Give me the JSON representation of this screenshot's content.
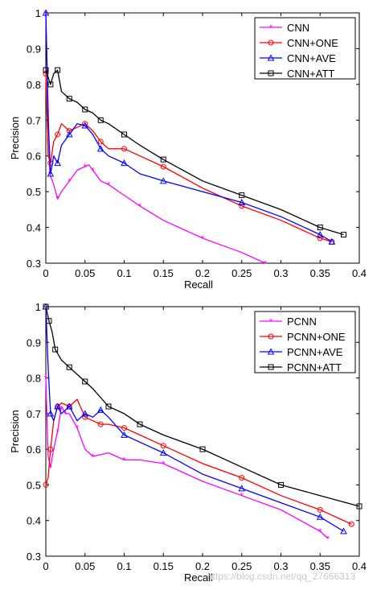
{
  "chart_data": [
    {
      "type": "line",
      "xlabel": "Recall",
      "ylabel": "Precision",
      "xlim": [
        0,
        0.4
      ],
      "ylim": [
        0.3,
        1
      ],
      "xticks": [
        0,
        0.05,
        0.1,
        0.15,
        0.2,
        0.25,
        0.3,
        0.35,
        0.4
      ],
      "xtick_labels": [
        "0",
        "0.05",
        "0.1",
        "0.15",
        "0.2",
        "0.25",
        "0.3",
        "0.35",
        "0.4"
      ],
      "yticks": [
        0.3,
        0.4,
        0.5,
        0.6,
        0.7,
        0.8,
        0.9,
        1
      ],
      "ytick_labels": [
        "0.3",
        "0.4",
        "0.5",
        "0.6",
        "0.7",
        "0.8",
        "0.9",
        "1"
      ],
      "legend_position": "top-right",
      "series": [
        {
          "name": "CNN",
          "color": "#ff00ff",
          "marker": "star",
          "x": [
            0.0,
            0.002,
            0.005,
            0.01,
            0.015,
            0.02,
            0.03,
            0.04,
            0.05,
            0.055,
            0.06,
            0.07,
            0.08,
            0.1,
            0.12,
            0.15,
            0.2,
            0.25,
            0.28
          ],
          "y": [
            1.0,
            0.82,
            0.55,
            0.52,
            0.48,
            0.5,
            0.53,
            0.56,
            0.57,
            0.575,
            0.56,
            0.53,
            0.52,
            0.49,
            0.46,
            0.42,
            0.37,
            0.33,
            0.3
          ]
        },
        {
          "name": "CNN+ONE",
          "color": "#ff0000",
          "marker": "circle",
          "x": [
            0.0,
            0.003,
            0.006,
            0.01,
            0.015,
            0.02,
            0.03,
            0.04,
            0.05,
            0.06,
            0.07,
            0.08,
            0.1,
            0.12,
            0.15,
            0.2,
            0.25,
            0.3,
            0.35,
            0.365
          ],
          "y": [
            0.83,
            0.6,
            0.58,
            0.64,
            0.66,
            0.69,
            0.67,
            0.68,
            0.69,
            0.67,
            0.64,
            0.62,
            0.62,
            0.6,
            0.57,
            0.51,
            0.46,
            0.42,
            0.37,
            0.36
          ]
        },
        {
          "name": "CNN+AVE",
          "color": "#0000ff",
          "marker": "triangle",
          "x": [
            0.0,
            0.003,
            0.006,
            0.01,
            0.015,
            0.02,
            0.03,
            0.04,
            0.05,
            0.06,
            0.07,
            0.08,
            0.1,
            0.12,
            0.15,
            0.2,
            0.25,
            0.3,
            0.35,
            0.365
          ],
          "y": [
            1.0,
            0.7,
            0.55,
            0.6,
            0.58,
            0.63,
            0.66,
            0.69,
            0.685,
            0.66,
            0.62,
            0.6,
            0.58,
            0.55,
            0.53,
            0.5,
            0.47,
            0.43,
            0.38,
            0.36
          ]
        },
        {
          "name": "CNN+ATT",
          "color": "#000000",
          "marker": "square",
          "x": [
            0.0,
            0.003,
            0.006,
            0.01,
            0.015,
            0.02,
            0.03,
            0.04,
            0.05,
            0.06,
            0.07,
            0.08,
            0.1,
            0.12,
            0.15,
            0.2,
            0.25,
            0.3,
            0.35,
            0.38
          ],
          "y": [
            0.84,
            0.82,
            0.8,
            0.83,
            0.84,
            0.78,
            0.76,
            0.75,
            0.73,
            0.72,
            0.7,
            0.69,
            0.66,
            0.63,
            0.59,
            0.53,
            0.49,
            0.45,
            0.4,
            0.38
          ]
        }
      ]
    },
    {
      "type": "line",
      "xlabel": "Recall",
      "ylabel": "Precision",
      "xlim": [
        0,
        0.4
      ],
      "ylim": [
        0.3,
        1
      ],
      "xticks": [
        0,
        0.05,
        0.1,
        0.15,
        0.2,
        0.25,
        0.3,
        0.35,
        0.4
      ],
      "xtick_labels": [
        "0",
        "0.05",
        "0.1",
        "0.15",
        "0.2",
        "0.25",
        "0.3",
        "0.35",
        "0.4"
      ],
      "yticks": [
        0.3,
        0.4,
        0.5,
        0.6,
        0.7,
        0.8,
        0.9,
        1
      ],
      "ytick_labels": [
        "0.3",
        "0.4",
        "0.5",
        "0.6",
        "0.7",
        "0.8",
        "0.9",
        "1"
      ],
      "legend_position": "top-right",
      "series": [
        {
          "name": "PCNN",
          "color": "#ff00ff",
          "marker": "star",
          "x": [
            0.0,
            0.003,
            0.006,
            0.01,
            0.015,
            0.02,
            0.025,
            0.03,
            0.04,
            0.05,
            0.06,
            0.08,
            0.1,
            0.12,
            0.15,
            0.2,
            0.25,
            0.3,
            0.35,
            0.36
          ],
          "y": [
            0.8,
            0.58,
            0.55,
            0.6,
            0.65,
            0.72,
            0.7,
            0.7,
            0.66,
            0.6,
            0.58,
            0.59,
            0.57,
            0.57,
            0.56,
            0.51,
            0.47,
            0.43,
            0.37,
            0.35
          ]
        },
        {
          "name": "PCNN+ONE",
          "color": "#ff0000",
          "marker": "circle",
          "x": [
            0.0,
            0.003,
            0.006,
            0.01,
            0.015,
            0.02,
            0.03,
            0.04,
            0.05,
            0.06,
            0.07,
            0.08,
            0.1,
            0.12,
            0.15,
            0.2,
            0.25,
            0.3,
            0.35,
            0.39
          ],
          "y": [
            0.5,
            0.52,
            0.6,
            0.68,
            0.72,
            0.73,
            0.72,
            0.74,
            0.69,
            0.68,
            0.67,
            0.67,
            0.66,
            0.64,
            0.61,
            0.56,
            0.52,
            0.47,
            0.43,
            0.39
          ]
        },
        {
          "name": "PCNN+AVE",
          "color": "#0000ff",
          "marker": "triangle",
          "x": [
            0.0,
            0.003,
            0.006,
            0.01,
            0.015,
            0.02,
            0.03,
            0.04,
            0.05,
            0.06,
            0.07,
            0.08,
            0.1,
            0.12,
            0.15,
            0.2,
            0.25,
            0.3,
            0.35,
            0.38
          ],
          "y": [
            1.0,
            0.83,
            0.7,
            0.68,
            0.72,
            0.7,
            0.72,
            0.68,
            0.7,
            0.69,
            0.71,
            0.69,
            0.64,
            0.62,
            0.59,
            0.53,
            0.49,
            0.45,
            0.41,
            0.37
          ]
        },
        {
          "name": "PCNN+ATT",
          "color": "#000000",
          "marker": "square",
          "x": [
            0.0,
            0.002,
            0.004,
            0.008,
            0.012,
            0.02,
            0.03,
            0.04,
            0.05,
            0.06,
            0.08,
            0.1,
            0.12,
            0.15,
            0.2,
            0.25,
            0.3,
            0.35,
            0.4
          ],
          "y": [
            1.0,
            0.98,
            0.96,
            0.93,
            0.88,
            0.85,
            0.83,
            0.81,
            0.79,
            0.77,
            0.72,
            0.7,
            0.67,
            0.64,
            0.6,
            0.55,
            0.5,
            0.47,
            0.44
          ]
        }
      ]
    }
  ],
  "watermark": "https://blog.csdn.net/qq_27666313"
}
